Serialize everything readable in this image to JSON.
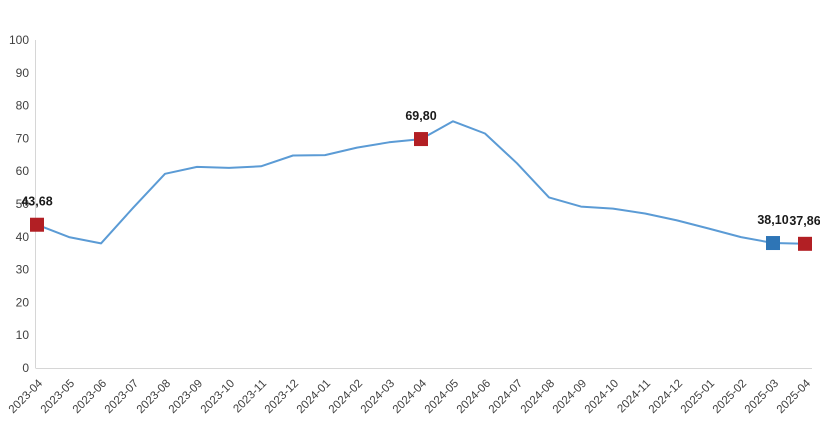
{
  "chart_data": {
    "type": "line",
    "title": "",
    "xlabel": "",
    "ylabel": "",
    "grid": false,
    "legend": null,
    "x": [
      "2023-04",
      "2023-05",
      "2023-06",
      "2023-07",
      "2023-08",
      "2023-09",
      "2023-10",
      "2023-11",
      "2023-12",
      "2024-01",
      "2024-02",
      "2024-03",
      "2024-04",
      "2024-05",
      "2024-06",
      "2024-07",
      "2024-08",
      "2024-09",
      "2024-10",
      "2024-11",
      "2024-12",
      "2025-01",
      "2025-02",
      "2025-03",
      "2025-04"
    ],
    "values": [
      43.68,
      39.9,
      38.0,
      48.8,
      59.2,
      61.3,
      61.0,
      61.5,
      64.8,
      64.9,
      67.2,
      68.8,
      69.8,
      75.2,
      71.5,
      62.4,
      52.0,
      49.2,
      48.6,
      47.1,
      45.0,
      42.5,
      39.9,
      38.1,
      37.86
    ],
    "ylim": [
      0,
      100
    ],
    "ytick_step": 10,
    "yticks": [
      0,
      10,
      20,
      30,
      40,
      50,
      60,
      70,
      80,
      90,
      100
    ],
    "line_color": "#5b9bd5",
    "axis_color": "#d6d6d6",
    "tick_text_color": "#3f3f3f",
    "data_label_color": "#1a1a1a",
    "highlighted_points": [
      {
        "x": "2023-04",
        "index": 0,
        "value_label": "43,68",
        "marker_color": "#b21f24"
      },
      {
        "x": "2024-04",
        "index": 12,
        "value_label": "69,80",
        "marker_color": "#b21f24"
      },
      {
        "x": "2025-03",
        "index": 23,
        "value_label": "38,10",
        "marker_color": "#2e75b6"
      },
      {
        "x": "2025-04",
        "index": 24,
        "value_label": "37,86",
        "marker_color": "#b21f24"
      }
    ]
  }
}
